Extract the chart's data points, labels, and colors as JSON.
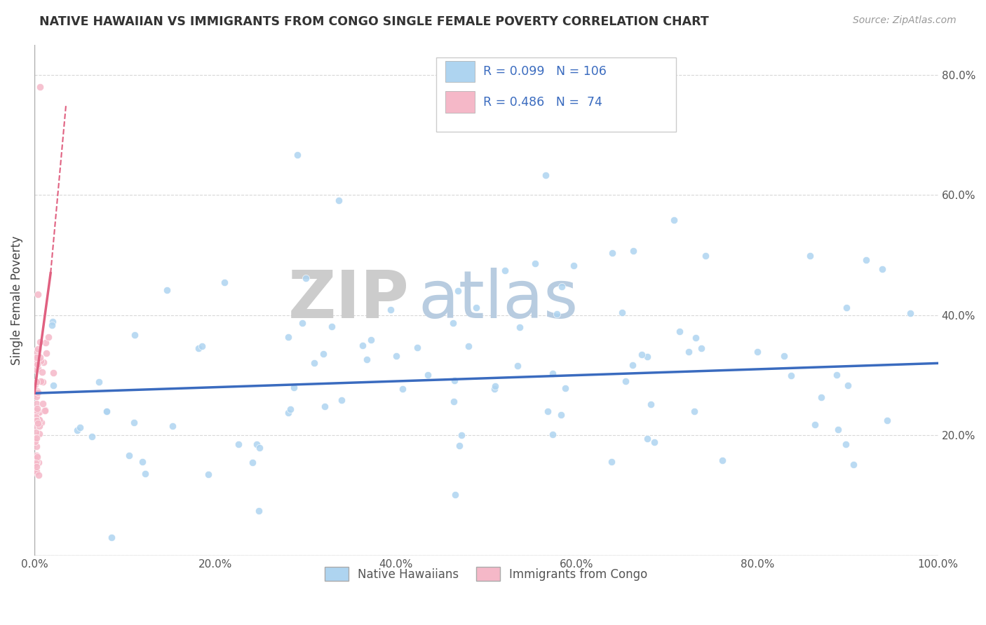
{
  "title": "NATIVE HAWAIIAN VS IMMIGRANTS FROM CONGO SINGLE FEMALE POVERTY CORRELATION CHART",
  "source_text": "Source: ZipAtlas.com",
  "ylabel": "Single Female Poverty",
  "watermark_part1": "ZIP",
  "watermark_part2": "atlas",
  "group1_name": "Native Hawaiians",
  "group1_color": "#aed4f0",
  "group1_R": 0.099,
  "group1_N": 106,
  "group2_name": "Immigrants from Congo",
  "group2_color": "#f5b8c8",
  "group2_R": 0.486,
  "group2_N": 74,
  "legend_R_color": "#3a6bbf",
  "trend1_color": "#3a6bbf",
  "trend2_color": "#e06080",
  "background_color": "#ffffff",
  "grid_color": "#d8d8d8",
  "xlim": [
    0.0,
    1.0
  ],
  "ylim": [
    0.0,
    0.85
  ],
  "xticks": [
    0.0,
    0.2,
    0.4,
    0.6,
    0.8,
    1.0
  ],
  "yticks": [
    0.0,
    0.2,
    0.4,
    0.6,
    0.8
  ],
  "xticklabels": [
    "0.0%",
    "20.0%",
    "40.0%",
    "60.0%",
    "80.0%",
    "100.0%"
  ],
  "right_yticklabels": [
    "",
    "20.0%",
    "40.0%",
    "60.0%",
    "80.0%"
  ],
  "trend1_x0": 0.0,
  "trend1_y0": 0.27,
  "trend1_x1": 1.0,
  "trend1_y1": 0.32,
  "trend2_solid_x0": 0.0,
  "trend2_solid_y0": 0.27,
  "trend2_solid_x1": 0.018,
  "trend2_solid_y1": 0.47,
  "trend2_dash_x0": 0.0,
  "trend2_dash_y0": 0.27,
  "trend2_dash_x1": 0.035,
  "trend2_dash_y1": 0.75
}
